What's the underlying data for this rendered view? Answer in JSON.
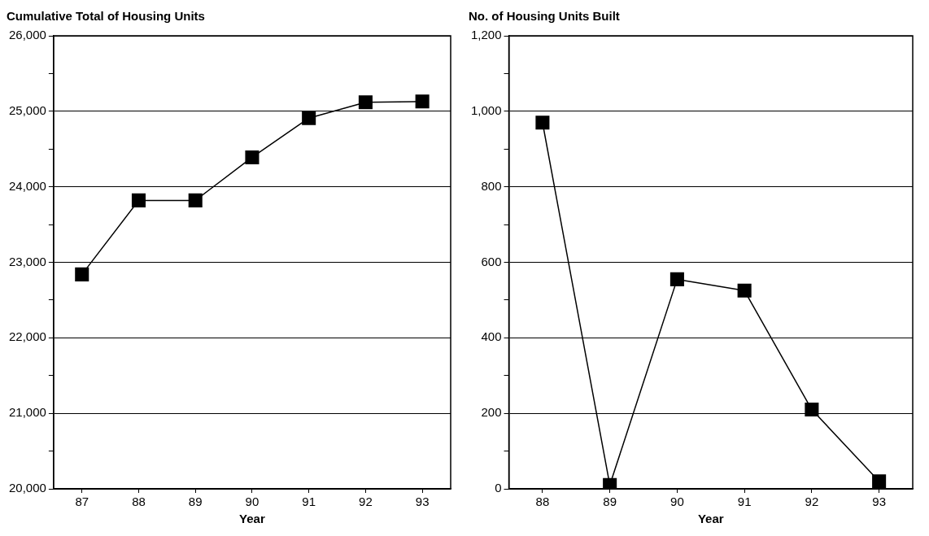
{
  "chart_data": [
    {
      "type": "line",
      "title": "Cumulative Total of Housing Units",
      "xlabel": "Year",
      "categories": [
        "87",
        "88",
        "89",
        "90",
        "91",
        "92",
        "93"
      ],
      "series": [
        {
          "color": "#000000",
          "values": [
            22840,
            23820,
            23820,
            24390,
            24910,
            25120,
            25130
          ]
        }
      ],
      "ylim": [
        20000,
        26000
      ],
      "yticks": [
        {
          "value": 20000,
          "label": "20,000"
        },
        {
          "value": 20500,
          "label": null
        },
        {
          "value": 21000,
          "label": "21,000"
        },
        {
          "value": 21500,
          "label": null
        },
        {
          "value": 22000,
          "label": "22,000"
        },
        {
          "value": 22500,
          "label": null
        },
        {
          "value": 23000,
          "label": "23,000"
        },
        {
          "value": 23500,
          "label": null
        },
        {
          "value": 24000,
          "label": "24,000"
        },
        {
          "value": 24500,
          "label": null
        },
        {
          "value": 25000,
          "label": "25,000"
        },
        {
          "value": 25500,
          "label": null
        },
        {
          "value": 26000,
          "label": "26,000"
        }
      ],
      "grid": "y",
      "legend": false,
      "marker": "square",
      "line_style": "solid"
    },
    {
      "type": "line",
      "title": "No. of Housing Units Built",
      "xlabel": "Year",
      "categories": [
        "88",
        "89",
        "90",
        "91",
        "92",
        "93"
      ],
      "series": [
        {
          "color": "#000000",
          "values": [
            970,
            10,
            555,
            525,
            210,
            20
          ]
        }
      ],
      "ylim": [
        0,
        1200
      ],
      "yticks": [
        0,
        {
          "value": 100,
          "label": null
        },
        200,
        {
          "value": 300,
          "label": null
        },
        400,
        {
          "value": 500,
          "label": null
        },
        600,
        {
          "value": 700,
          "label": null
        },
        800,
        {
          "value": 900,
          "label": null
        },
        {
          "value": 1000,
          "label": "1,000"
        },
        {
          "value": 1100,
          "label": null
        },
        {
          "value": 1200,
          "label": "1,200"
        }
      ],
      "grid": "y",
      "legend": false,
      "marker": "square",
      "line_style": "solid"
    }
  ]
}
